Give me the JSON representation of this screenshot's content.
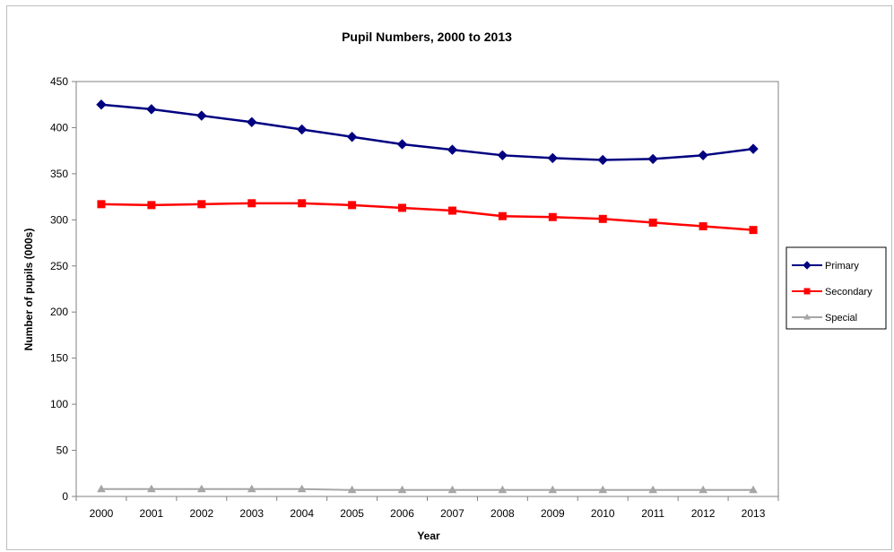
{
  "chart_data": {
    "type": "line",
    "title": "Pupil Numbers, 2000 to 2013",
    "xlabel": "Year",
    "ylabel": "Number of pupils (000s)",
    "categories": [
      "2000",
      "2001",
      "2002",
      "2003",
      "2004",
      "2005",
      "2006",
      "2007",
      "2008",
      "2009",
      "2010",
      "2011",
      "2012",
      "2013"
    ],
    "ylim": [
      0,
      450
    ],
    "yticks": [
      0,
      50,
      100,
      150,
      200,
      250,
      300,
      350,
      400,
      450
    ],
    "grid": true,
    "legend_position": "right",
    "series": [
      {
        "name": "Primary",
        "color": "#000080",
        "marker": "diamond",
        "values": [
          425,
          420,
          413,
          406,
          398,
          390,
          382,
          376,
          370,
          367,
          365,
          366,
          370,
          377
        ]
      },
      {
        "name": "Secondary",
        "color": "#ff0000",
        "marker": "square",
        "values": [
          317,
          316,
          317,
          318,
          318,
          316,
          313,
          310,
          304,
          303,
          301,
          297,
          293,
          289
        ]
      },
      {
        "name": "Special",
        "color": "#a6a6a6",
        "marker": "triangle",
        "values": [
          8,
          8,
          8,
          8,
          8,
          7,
          7,
          7,
          7,
          7,
          7,
          7,
          7,
          7
        ]
      }
    ]
  }
}
